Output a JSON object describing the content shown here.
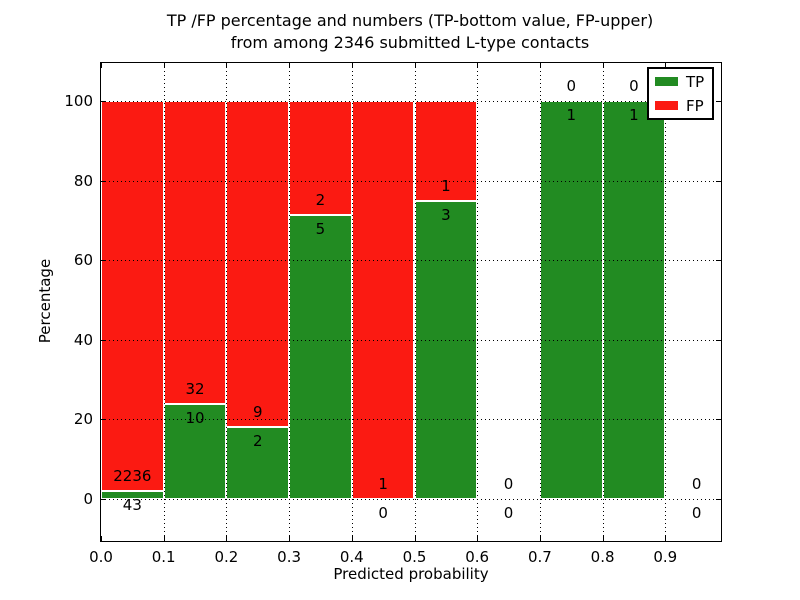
{
  "figure": {
    "title_line1": "TP /FP percentage and numbers (TP-bottom value, FP-upper)",
    "title_line2": "from among 2346 submitted L-type contacts",
    "xlabel": "Predicted probability",
    "ylabel": "Percentage"
  },
  "legend": {
    "position": "upper-right",
    "items": [
      {
        "label": "TP",
        "color": "#228b22"
      },
      {
        "label": "FP",
        "color": "#fb1a12"
      }
    ]
  },
  "colors": {
    "tp_green": "#228b22",
    "fp_red": "#fb1a12",
    "background": "#ffffff",
    "text": "#000000",
    "grid": "#000000",
    "bar_edge": "#ffffff"
  },
  "chart_data": {
    "type": "bar",
    "subtype": "stacked-percentage",
    "title": "TP /FP percentage and numbers (TP-bottom value, FP-upper) from among 2346 submitted L-type contacts",
    "xlabel": "Predicted probability",
    "ylabel": "Percentage",
    "bin_edges": [
      0.0,
      0.1,
      0.2,
      0.3,
      0.4,
      0.5,
      0.6,
      0.7,
      0.8,
      0.9,
      1.0
    ],
    "categories": [
      "0.0-0.1",
      "0.1-0.2",
      "0.2-0.3",
      "0.3-0.4",
      "0.4-0.5",
      "0.5-0.6",
      "0.6-0.7",
      "0.7-0.8",
      "0.8-0.9",
      "0.9-1.0"
    ],
    "series": [
      {
        "name": "TP",
        "color": "#228b22",
        "counts": [
          43,
          10,
          2,
          5,
          0,
          3,
          0,
          1,
          1,
          0
        ]
      },
      {
        "name": "FP",
        "color": "#fb1a12",
        "counts": [
          2236,
          32,
          9,
          2,
          1,
          1,
          0,
          0,
          0,
          0
        ]
      }
    ],
    "tp_percent_height": [
      1.9,
      23.8,
      18.2,
      71.4,
      0.0,
      75.0,
      null,
      100.0,
      100.0,
      null
    ],
    "bars_total_height_percent": 100,
    "total_contacts": 2346,
    "xticks": [
      "0.0",
      "0.1",
      "0.2",
      "0.3",
      "0.4",
      "0.5",
      "0.6",
      "0.7",
      "0.8",
      "0.9"
    ],
    "yticks": [
      0,
      20,
      40,
      60,
      80,
      100
    ],
    "xlim": [
      0.0,
      0.99
    ],
    "ylim": [
      -10.5,
      109.5
    ],
    "grid": "dotted",
    "grid_above_bars": true,
    "legend_position": "upper-right"
  }
}
